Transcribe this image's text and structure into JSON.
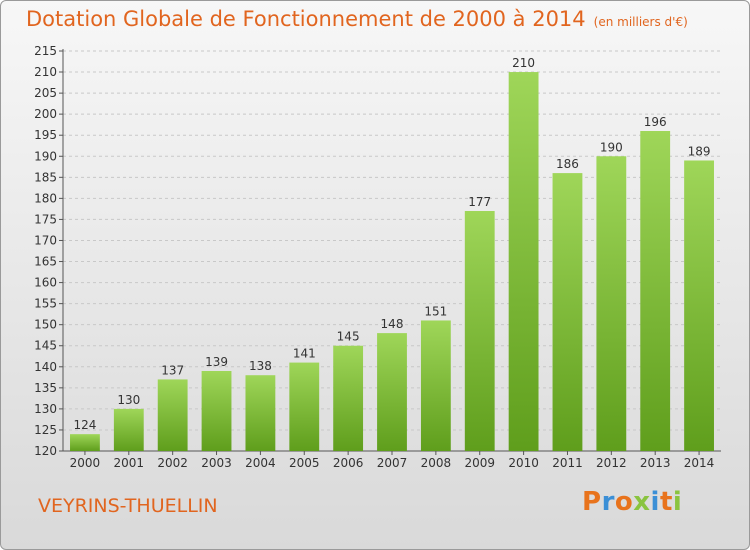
{
  "header": {
    "title": "Dotation Globale de Fonctionnement de 2000 à 2014",
    "subtitle": "(en milliers d'€)"
  },
  "footer": {
    "commune": "VEYRINS-THUELLIN",
    "logo_letters": [
      "P",
      "r",
      "o",
      "x",
      "i",
      "t",
      "i"
    ],
    "logo_colors": [
      "#e8731c",
      "#3b8fd6",
      "#e8731c",
      "#8ac43f",
      "#3b8fd6",
      "#e8731c",
      "#8ac43f"
    ]
  },
  "colors": {
    "bar_light": "#9fd659",
    "bar_dark": "#5f9e1c",
    "title": "#e1651f"
  },
  "chart_data": {
    "type": "bar",
    "title": "Dotation Globale de Fonctionnement de 2000 à 2014",
    "subtitle": "(en milliers d'€)",
    "categories": [
      "2000",
      "2001",
      "2002",
      "2003",
      "2004",
      "2005",
      "2006",
      "2007",
      "2008",
      "2009",
      "2010",
      "2011",
      "2012",
      "2013",
      "2014"
    ],
    "values": [
      124,
      130,
      137,
      139,
      138,
      141,
      145,
      148,
      151,
      177,
      210,
      186,
      190,
      196,
      189
    ],
    "ylim": [
      120,
      215
    ],
    "ytick_step": 5,
    "grid": true
  }
}
